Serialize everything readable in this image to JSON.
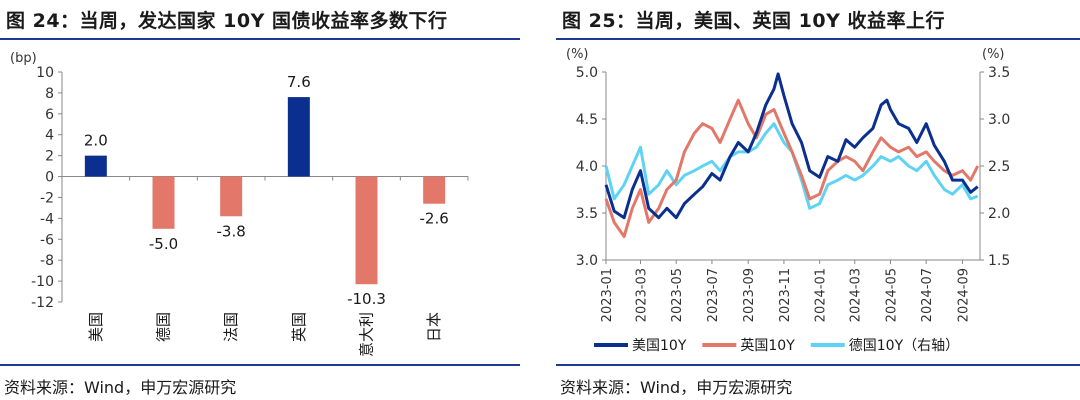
{
  "left_panel": {
    "title": "图 24：当周，发达国家 10Y 国债收益率多数下行",
    "source": "资料来源：Wind，申万宏源研究"
  },
  "right_panel": {
    "title": "图 25：当周，美国、英国 10Y 收益率上行",
    "source": "资料来源：Wind，申万宏源研究"
  },
  "colors": {
    "navy": "#0a2f8f",
    "salmon": "#e2776a",
    "cyan": "#5fd3f3",
    "rule": "#1f3a93",
    "axis": "#888888"
  },
  "chart_data": [
    {
      "type": "bar",
      "title": "",
      "ylabel": "(bp)",
      "ylim": [
        -12,
        10
      ],
      "yticks": [
        10,
        8,
        6,
        4,
        2,
        0,
        -2,
        -4,
        -6,
        -8,
        -10,
        -12
      ],
      "categories": [
        "美国",
        "德国",
        "法国",
        "英国",
        "意大利",
        "日本"
      ],
      "values": [
        2.0,
        -5.0,
        -3.8,
        7.6,
        -10.3,
        -2.6
      ],
      "value_labels": [
        "2.0",
        "-5.0",
        "-3.8",
        "7.6",
        "-10.3",
        "-2.6"
      ],
      "positive_color": "#0a2f8f",
      "negative_color": "#e2776a",
      "grid": false
    },
    {
      "type": "line",
      "left_axis_label": "(%)",
      "right_axis_label": "(%)",
      "left_ylim": [
        3.0,
        5.0
      ],
      "left_yticks": [
        "3.0",
        "3.5",
        "4.0",
        "4.5",
        "5.0"
      ],
      "right_ylim": [
        1.5,
        3.5
      ],
      "right_yticks": [
        "1.5",
        "2.0",
        "2.5",
        "3.0",
        "3.5"
      ],
      "x_ticks": [
        "2023-01",
        "2023-03",
        "2023-05",
        "2023-07",
        "2023-09",
        "2023-11",
        "2024-01",
        "2024-03",
        "2024-05",
        "2024-07",
        "2024-09"
      ],
      "grid": false,
      "legend_position": "bottom",
      "series": [
        {
          "name": "美国10Y",
          "axis": "left",
          "color": "#0a2f8f",
          "points": [
            [
              "2023-01",
              3.8
            ],
            [
              "2023-01-15",
              3.52
            ],
            [
              "2023-02",
              3.45
            ],
            [
              "2023-02-15",
              3.75
            ],
            [
              "2023-03",
              3.95
            ],
            [
              "2023-03-15",
              3.55
            ],
            [
              "2023-04",
              3.45
            ],
            [
              "2023-04-15",
              3.55
            ],
            [
              "2023-05",
              3.45
            ],
            [
              "2023-05-15",
              3.6
            ],
            [
              "2023-06",
              3.7
            ],
            [
              "2023-06-15",
              3.78
            ],
            [
              "2023-07",
              3.92
            ],
            [
              "2023-07-15",
              3.85
            ],
            [
              "2023-08",
              4.1
            ],
            [
              "2023-08-15",
              4.25
            ],
            [
              "2023-09",
              4.15
            ],
            [
              "2023-09-15",
              4.35
            ],
            [
              "2023-10",
              4.65
            ],
            [
              "2023-10-15",
              4.82
            ],
            [
              "2023-10-22",
              4.98
            ],
            [
              "2023-11",
              4.75
            ],
            [
              "2023-11-15",
              4.45
            ],
            [
              "2023-12",
              4.25
            ],
            [
              "2023-12-15",
              3.95
            ],
            [
              "2024-01",
              3.88
            ],
            [
              "2024-01-15",
              4.1
            ],
            [
              "2024-02",
              4.05
            ],
            [
              "2024-02-15",
              4.28
            ],
            [
              "2024-03",
              4.2
            ],
            [
              "2024-03-15",
              4.3
            ],
            [
              "2024-04",
              4.4
            ],
            [
              "2024-04-15",
              4.65
            ],
            [
              "2024-04-25",
              4.7
            ],
            [
              "2024-05",
              4.6
            ],
            [
              "2024-05-15",
              4.45
            ],
            [
              "2024-06",
              4.4
            ],
            [
              "2024-06-15",
              4.25
            ],
            [
              "2024-07",
              4.45
            ],
            [
              "2024-07-15",
              4.22
            ],
            [
              "2024-08",
              4.05
            ],
            [
              "2024-08-15",
              3.85
            ],
            [
              "2024-09",
              3.85
            ],
            [
              "2024-09-15",
              3.72
            ],
            [
              "2024-09-27",
              3.78
            ]
          ]
        },
        {
          "name": "英国10Y",
          "axis": "left",
          "color": "#e2776a",
          "points": [
            [
              "2023-01",
              3.65
            ],
            [
              "2023-01-15",
              3.4
            ],
            [
              "2023-02",
              3.25
            ],
            [
              "2023-02-15",
              3.55
            ],
            [
              "2023-03",
              3.75
            ],
            [
              "2023-03-15",
              3.4
            ],
            [
              "2023-04",
              3.55
            ],
            [
              "2023-04-15",
              3.75
            ],
            [
              "2023-05",
              3.85
            ],
            [
              "2023-05-15",
              4.15
            ],
            [
              "2023-06",
              4.35
            ],
            [
              "2023-06-15",
              4.45
            ],
            [
              "2023-07",
              4.4
            ],
            [
              "2023-07-15",
              4.25
            ],
            [
              "2023-08",
              4.5
            ],
            [
              "2023-08-15",
              4.7
            ],
            [
              "2023-09",
              4.45
            ],
            [
              "2023-09-15",
              4.3
            ],
            [
              "2023-10",
              4.55
            ],
            [
              "2023-10-15",
              4.6
            ],
            [
              "2023-11",
              4.35
            ],
            [
              "2023-11-15",
              4.15
            ],
            [
              "2023-12",
              3.9
            ],
            [
              "2023-12-15",
              3.65
            ],
            [
              "2024-01",
              3.7
            ],
            [
              "2024-01-15",
              3.95
            ],
            [
              "2024-02",
              4.05
            ],
            [
              "2024-02-15",
              4.1
            ],
            [
              "2024-03",
              4.05
            ],
            [
              "2024-03-15",
              3.95
            ],
            [
              "2024-04",
              4.15
            ],
            [
              "2024-04-15",
              4.3
            ],
            [
              "2024-05",
              4.2
            ],
            [
              "2024-05-15",
              4.15
            ],
            [
              "2024-06",
              4.2
            ],
            [
              "2024-06-15",
              4.1
            ],
            [
              "2024-07",
              4.15
            ],
            [
              "2024-07-15",
              4.05
            ],
            [
              "2024-08",
              3.95
            ],
            [
              "2024-08-15",
              3.9
            ],
            [
              "2024-09",
              3.95
            ],
            [
              "2024-09-15",
              3.85
            ],
            [
              "2024-09-27",
              4.0
            ]
          ]
        },
        {
          "name": "德国10Y（右轴）",
          "axis": "right",
          "color": "#5fd3f3",
          "points": [
            [
              "2023-01",
              2.5
            ],
            [
              "2023-01-15",
              2.15
            ],
            [
              "2023-02",
              2.3
            ],
            [
              "2023-02-15",
              2.5
            ],
            [
              "2023-03",
              2.7
            ],
            [
              "2023-03-15",
              2.2
            ],
            [
              "2023-04",
              2.3
            ],
            [
              "2023-04-15",
              2.45
            ],
            [
              "2023-05",
              2.3
            ],
            [
              "2023-05-15",
              2.4
            ],
            [
              "2023-06",
              2.45
            ],
            [
              "2023-06-15",
              2.5
            ],
            [
              "2023-07",
              2.55
            ],
            [
              "2023-07-15",
              2.45
            ],
            [
              "2023-08",
              2.6
            ],
            [
              "2023-08-15",
              2.65
            ],
            [
              "2023-09",
              2.65
            ],
            [
              "2023-09-15",
              2.7
            ],
            [
              "2023-10",
              2.85
            ],
            [
              "2023-10-15",
              2.95
            ],
            [
              "2023-11",
              2.75
            ],
            [
              "2023-11-15",
              2.65
            ],
            [
              "2023-12",
              2.35
            ],
            [
              "2023-12-15",
              2.05
            ],
            [
              "2024-01",
              2.1
            ],
            [
              "2024-01-15",
              2.3
            ],
            [
              "2024-02",
              2.35
            ],
            [
              "2024-02-15",
              2.4
            ],
            [
              "2024-03",
              2.35
            ],
            [
              "2024-03-15",
              2.4
            ],
            [
              "2024-04",
              2.5
            ],
            [
              "2024-04-15",
              2.6
            ],
            [
              "2024-05",
              2.55
            ],
            [
              "2024-05-15",
              2.6
            ],
            [
              "2024-06",
              2.5
            ],
            [
              "2024-06-15",
              2.45
            ],
            [
              "2024-07",
              2.55
            ],
            [
              "2024-07-15",
              2.4
            ],
            [
              "2024-08",
              2.25
            ],
            [
              "2024-08-15",
              2.2
            ],
            [
              "2024-09",
              2.3
            ],
            [
              "2024-09-15",
              2.15
            ],
            [
              "2024-09-27",
              2.18
            ]
          ]
        }
      ]
    }
  ]
}
